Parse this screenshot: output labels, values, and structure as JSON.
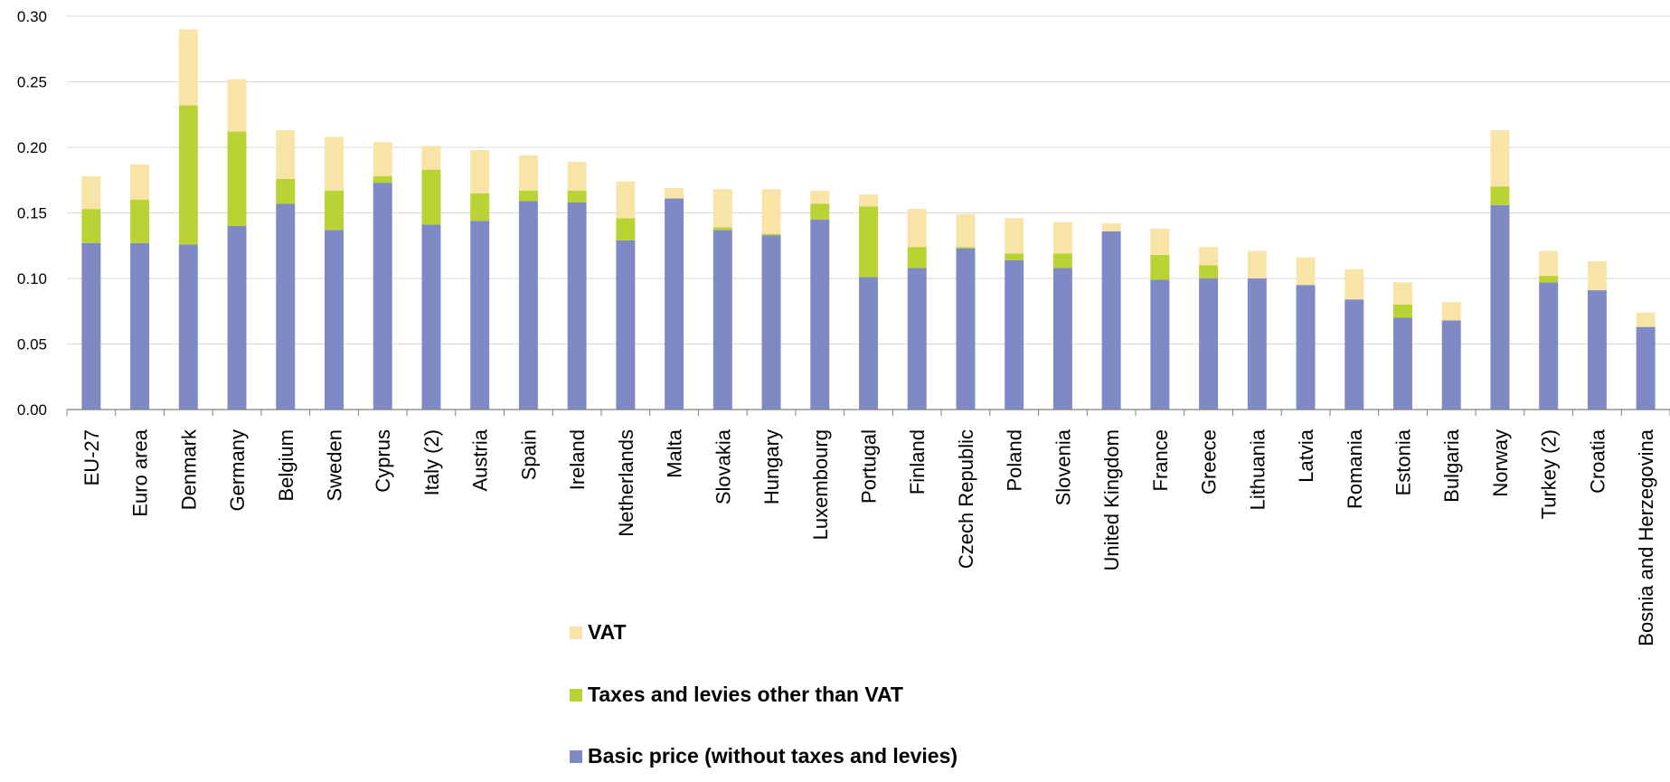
{
  "chart_data": {
    "type": "bar",
    "stacked": true,
    "categories": [
      "EU-27",
      "Euro area",
      "Denmark",
      "Germany",
      "Belgium",
      "Sweden",
      "Cyprus",
      "Italy (2)",
      "Austria",
      "Spain",
      "Ireland",
      "Netherlands",
      "Malta",
      "Slovakia",
      "Hungary",
      "Luxembourg",
      "Portugal",
      "Finland",
      "Czech Republic",
      "Poland",
      "Slovenia",
      "United Kingdom",
      "France",
      "Greece",
      "Lithuania",
      "Latvia",
      "Romania",
      "Estonia",
      "Bulgaria",
      "Norway",
      "Turkey (2)",
      "Croatia",
      "Bosnia and Herzegovina"
    ],
    "series": [
      {
        "name": "Basic price (without taxes and levies)",
        "color": "#7f8ac5",
        "values": [
          0.127,
          0.127,
          0.126,
          0.14,
          0.157,
          0.137,
          0.173,
          0.141,
          0.144,
          0.159,
          0.158,
          0.129,
          0.161,
          0.137,
          0.133,
          0.145,
          0.101,
          0.108,
          0.123,
          0.114,
          0.108,
          0.136,
          0.099,
          0.1,
          0.1,
          0.095,
          0.084,
          0.07,
          0.068,
          0.156,
          0.097,
          0.091,
          0.063
        ]
      },
      {
        "name": "Taxes and levies other than VAT",
        "color": "#b9d234",
        "values": [
          0.026,
          0.033,
          0.106,
          0.072,
          0.019,
          0.03,
          0.005,
          0.042,
          0.021,
          0.008,
          0.009,
          0.017,
          0.0,
          0.002,
          0.001,
          0.012,
          0.054,
          0.016,
          0.001,
          0.005,
          0.011,
          0.0,
          0.019,
          0.01,
          0.0,
          0.0,
          0.0,
          0.01,
          0.0,
          0.014,
          0.005,
          0.0,
          0.0
        ]
      },
      {
        "name": "VAT",
        "color": "#f8e4a6",
        "values": [
          0.025,
          0.027,
          0.058,
          0.04,
          0.037,
          0.041,
          0.026,
          0.018,
          0.033,
          0.027,
          0.022,
          0.028,
          0.008,
          0.029,
          0.034,
          0.01,
          0.009,
          0.029,
          0.025,
          0.027,
          0.024,
          0.006,
          0.02,
          0.014,
          0.021,
          0.021,
          0.023,
          0.017,
          0.014,
          0.043,
          0.019,
          0.022,
          0.011
        ]
      }
    ],
    "y_ticks": [
      "0.00",
      "0.05",
      "0.10",
      "0.15",
      "0.20",
      "0.25",
      "0.30"
    ],
    "ylim": [
      0,
      0.3
    ],
    "grid": true,
    "legend_position": "bottom",
    "legend_order": [
      "VAT",
      "Taxes and levies other than VAT",
      "Basic price (without taxes and levies)"
    ],
    "title": "",
    "xlabel": "",
    "ylabel": ""
  }
}
